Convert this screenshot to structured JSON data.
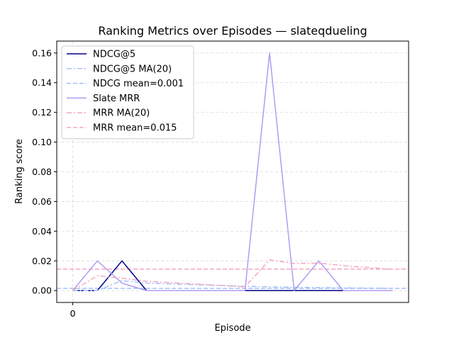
{
  "chart_data": {
    "type": "line",
    "title": "Ranking Metrics over Episodes — slateqdueling",
    "xlabel": "Episode",
    "ylabel": "Ranking score",
    "xlim": [
      -0.65,
      13.65
    ],
    "ylim": [
      -0.008,
      0.168
    ],
    "xticks": [
      0
    ],
    "yticks": [
      0.0,
      0.02,
      0.04,
      0.06,
      0.08,
      0.1,
      0.12,
      0.14,
      0.16
    ],
    "ytick_labels": [
      "0.00",
      "0.02",
      "0.04",
      "0.06",
      "0.08",
      "0.10",
      "0.12",
      "0.14",
      "0.16"
    ],
    "grid": true,
    "legend_position": "upper-left",
    "x": [
      0,
      1,
      2,
      3,
      7,
      8,
      9,
      10,
      11,
      13
    ],
    "series": [
      {
        "name": "NDCG@5",
        "style": "solid",
        "color": "#00008b",
        "values": [
          0.0,
          0.0,
          0.02,
          0.0,
          0.0,
          0.0,
          0.0,
          0.0,
          0.0,
          0.0
        ]
      },
      {
        "name": "NDCG@5 MA(20)",
        "style": "dashdot",
        "color": "#a4c2f4",
        "values": [
          0.0,
          0.0,
          0.0067,
          0.005,
          0.0029,
          0.0025,
          0.0022,
          0.002,
          0.0018,
          0.0015
        ]
      },
      {
        "name": "NDCG mean=0.001",
        "style": "dashed",
        "color": "#a4c2f4",
        "hline": 0.0015
      },
      {
        "name": "Slate MRR",
        "style": "solid",
        "color": "#b19cf2",
        "values": [
          0.0,
          0.02,
          0.005,
          0.0,
          0.0,
          0.16,
          0.0,
          0.02,
          0.0,
          0.0
        ]
      },
      {
        "name": "MRR MA(20)",
        "style": "dashdot",
        "color": "#f4a6c4",
        "values": [
          0.0,
          0.01,
          0.0083,
          0.0063,
          0.0025,
          0.0206,
          0.0183,
          0.0185,
          0.0168,
          0.0143
        ]
      },
      {
        "name": "MRR mean=0.015",
        "style": "dashed",
        "color": "#f4a6c4",
        "hline": 0.0145
      }
    ]
  }
}
